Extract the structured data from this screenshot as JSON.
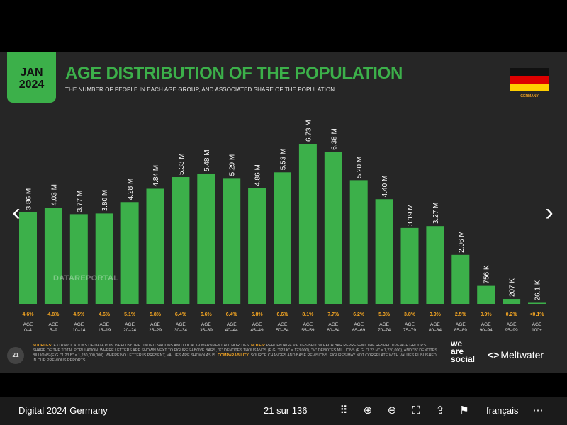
{
  "badge": {
    "month": "JAN",
    "year": "2024"
  },
  "title": "AGE DISTRIBUTION OF THE POPULATION",
  "subtitle": "THE NUMBER OF PEOPLE IN EACH AGE GROUP, AND ASSOCIATED SHARE OF THE POPULATION",
  "country": "GERMANY",
  "colors": {
    "accent": "#3cb04a",
    "share": "#f5a623",
    "bg": "#262626"
  },
  "watermark": "DATAREPORTAL",
  "page_number": "21",
  "footnote": {
    "sources_label": "SOURCES:",
    "sources_text": " EXTRAPOLATIONS OF DATA PUBLISHED BY THE UNITED NATIONS AND LOCAL GOVERNMENT AUTHORITIES. ",
    "notes_label": "NOTES:",
    "notes_text": " PERCENTAGE VALUES BELOW EACH BAR REPRESENT THE RESPECTIVE AGE GROUP'S SHARE OF THE TOTAL POPULATION. WHERE LETTERS ARE SHOWN NEXT TO FIGURES ABOVE BARS, \"K\" DENOTES THOUSANDS (E.G. \"123 K\" = 123,000), \"M\" DENOTES MILLIONS (E.G. \"1.23 M\" = 1,230,000), AND \"B\" DENOTES BILLIONS (E.G. \"1.23 B\" = 1,230,000,000). WHERE NO LETTER IS PRESENT, VALUES ARE SHOWN AS IS. ",
    "comp_label": "COMPARABILITY:",
    "comp_text": " SOURCE CHANGES AND BASE REVISIONS. FIGURES MAY NOT CORRELATE WITH VALUES PUBLISHED IN OUR PREVIOUS REPORTS."
  },
  "logos": {
    "was_line1": "we",
    "was_line2": "are",
    "was_line3": "social",
    "meltwater": "Meltwater",
    "meltwater_mark": "<>"
  },
  "nav": {
    "prev_icon": "chevron-left-icon",
    "next_icon": "chevron-right-icon",
    "prev": "‹",
    "next": "›"
  },
  "viewer": {
    "doc_title": "Digital 2024 Germany",
    "pager": "21 sur 136",
    "language": "français",
    "tools": [
      {
        "name": "grid-icon",
        "glyph": "⠿"
      },
      {
        "name": "zoom-in-icon",
        "glyph": "⊕"
      },
      {
        "name": "zoom-out-icon",
        "glyph": "⊖"
      },
      {
        "name": "fullscreen-icon",
        "glyph": "⛶"
      },
      {
        "name": "share-icon",
        "glyph": "⇪"
      },
      {
        "name": "flag-icon",
        "glyph": "⚑"
      },
      {
        "name": "more-icon",
        "glyph": "⋯"
      }
    ]
  },
  "chart_data": {
    "type": "bar",
    "title": "AGE DISTRIBUTION OF THE POPULATION",
    "categories": [
      "AGE 0-4",
      "AGE 5-9",
      "AGE 10-14",
      "AGE 15-19",
      "AGE 20-24",
      "AGE 25-29",
      "AGE 30-34",
      "AGE 35-39",
      "AGE 40-44",
      "AGE 45-49",
      "AGE 50-54",
      "AGE 55-59",
      "AGE 60-64",
      "AGE 65-69",
      "AGE 70-74",
      "AGE 75-79",
      "AGE 80-84",
      "AGE 85-89",
      "AGE 90-94",
      "AGE 95-99",
      "AGE 100+"
    ],
    "cat_line1": [
      "AGE",
      "AGE",
      "AGE",
      "AGE",
      "AGE",
      "AGE",
      "AGE",
      "AGE",
      "AGE",
      "AGE",
      "AGE",
      "AGE",
      "AGE",
      "AGE",
      "AGE",
      "AGE",
      "AGE",
      "AGE",
      "AGE",
      "AGE",
      "AGE"
    ],
    "cat_line2": [
      "0–4",
      "5–9",
      "10–14",
      "15–19",
      "20–24",
      "25–29",
      "30–34",
      "35–39",
      "40–44",
      "45–49",
      "50–54",
      "55–59",
      "60–64",
      "65–69",
      "70–74",
      "75–79",
      "80–84",
      "85–89",
      "90–94",
      "95–99",
      "100+"
    ],
    "values": [
      3860000,
      4030000,
      3770000,
      3800000,
      4280000,
      4840000,
      5330000,
      5480000,
      5290000,
      4860000,
      5530000,
      6730000,
      6380000,
      5200000,
      4400000,
      3190000,
      3270000,
      2060000,
      756000,
      207000,
      26100
    ],
    "value_labels": [
      "3.86 M",
      "4.03 M",
      "3.77 M",
      "3.80 M",
      "4.28 M",
      "4.84 M",
      "5.33 M",
      "5.48 M",
      "5.29 M",
      "4.86 M",
      "5.53 M",
      "6.73 M",
      "6.38 M",
      "5.20 M",
      "4.40 M",
      "3.19 M",
      "3.27 M",
      "2.06 M",
      "756 K",
      "207 K",
      "26.1 K"
    ],
    "shares": [
      "4.6%",
      "4.8%",
      "4.5%",
      "4.6%",
      "5.1%",
      "5.8%",
      "6.4%",
      "6.6%",
      "6.4%",
      "5.8%",
      "6.6%",
      "8.1%",
      "7.7%",
      "6.2%",
      "5.3%",
      "3.8%",
      "3.9%",
      "2.5%",
      "0.9%",
      "0.2%",
      "<0.1%"
    ],
    "ylim": [
      0,
      6730000
    ]
  }
}
